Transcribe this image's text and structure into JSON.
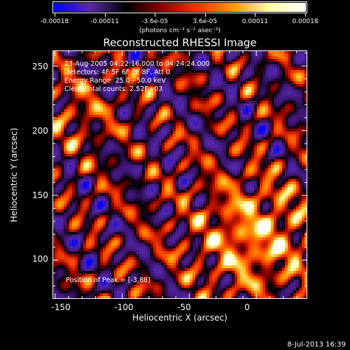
{
  "colorbar": {
    "tick_labels": [
      "-0.00018",
      "-0.00011",
      "-3.6e-05",
      "3.6e-05",
      "0.00011",
      "0.00018"
    ],
    "units_label": "(photons cm⁻² s⁻¹ asec⁻²)",
    "colors": [
      "#0000ff",
      "#5a2aa8",
      "#000000",
      "#8b0000",
      "#ff3300",
      "#ff9900",
      "#ffffaa",
      "#ffffff"
    ]
  },
  "plot": {
    "title": "Reconstructed RHESSI Image",
    "info_lines": [
      "23-Aug-2005 04:22:16.000 to 04:24:24.000",
      "Detectors: 4F 5F 6F 7F 8F, Att 0",
      "Energy Range: 25.0 - 50.0 keV",
      "Clean    Total counts: 2.52E+03"
    ],
    "peak_text": "Position of Peak = [-3,88]",
    "xlabel": "Heliocentric X (arcsec)",
    "ylabel": "Heliocentric Y (arcsec)",
    "xticks": [
      "-150",
      "-100",
      "-50",
      "0"
    ],
    "yticks": [
      "250",
      "200",
      "150",
      "100"
    ],
    "x_range": [
      -152,
      38
    ],
    "y_range": [
      70,
      262
    ]
  },
  "footer": {
    "timestamp": "8-Jul-2013 16:39"
  }
}
